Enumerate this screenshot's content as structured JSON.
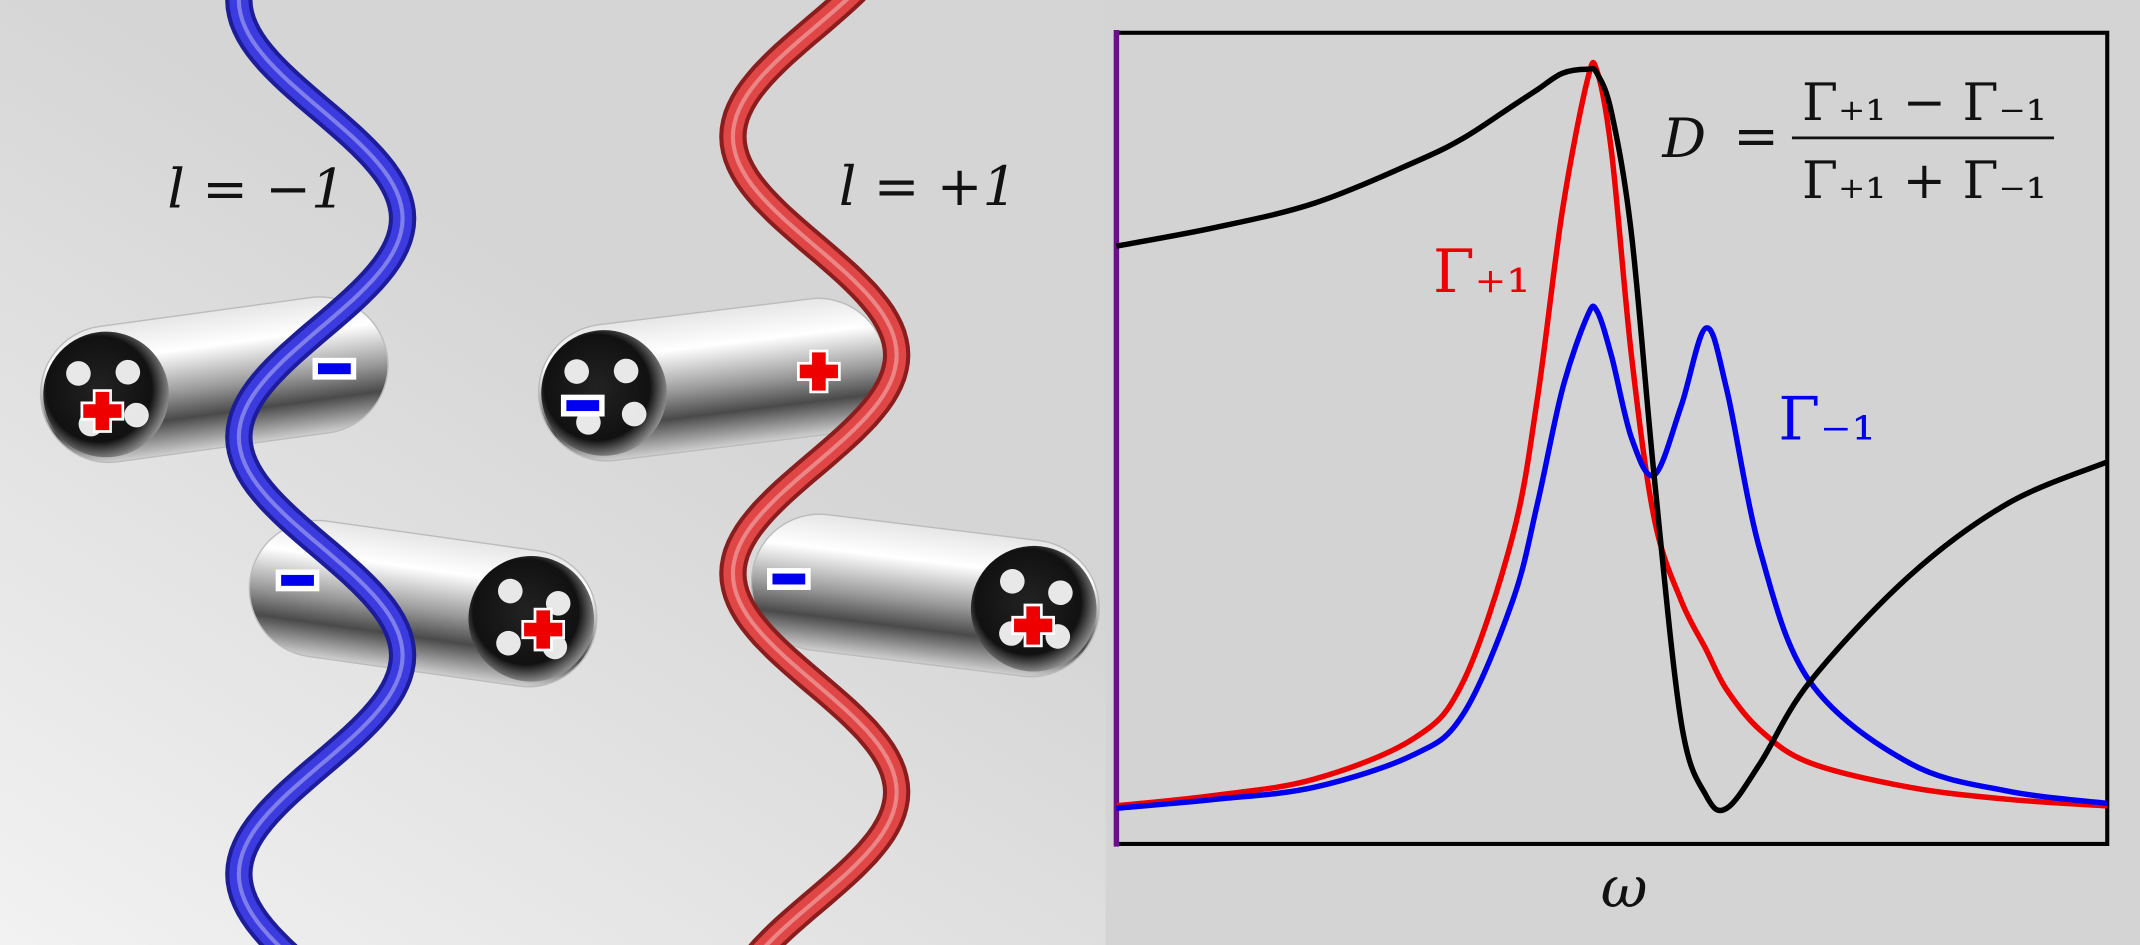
{
  "illustration": {
    "labels": [
      "l = −1",
      "l = +1"
    ]
  },
  "formula": {
    "equals": "=",
    "numerator": "Γ₊₁ − Γ₋₁",
    "denominator": "Γ₊₁ + Γ₋₁"
  },
  "chart_data": {
    "type": "line",
    "xlabel": "ω",
    "xlim": [
      0,
      10
    ],
    "ylim": [
      0,
      1
    ],
    "x": [
      0,
      1,
      2,
      3,
      3.5,
      4,
      4.25,
      4.5,
      4.75,
      4.85,
      5,
      5.2,
      5.43,
      5.7,
      5.95,
      6.16,
      6.5,
      7,
      8,
      9,
      10
    ],
    "series": [
      {
        "name": "Γ₊₁",
        "color": "#ee0000",
        "values": [
          0.047,
          0.06,
          0.08,
          0.13,
          0.2,
          0.38,
          0.55,
          0.78,
          0.94,
          0.953,
          0.85,
          0.6,
          0.4,
          0.3,
          0.24,
          0.19,
          0.14,
          0.1,
          0.07,
          0.055,
          0.047
        ]
      },
      {
        "name": "Γ₋₁",
        "color": "#0000ee",
        "values": [
          0.044,
          0.055,
          0.07,
          0.11,
          0.16,
          0.3,
          0.42,
          0.56,
          0.65,
          0.657,
          0.6,
          0.5,
          0.455,
          0.54,
          0.636,
          0.56,
          0.36,
          0.2,
          0.1,
          0.065,
          0.05
        ]
      },
      {
        "name": "D",
        "color": "#000000",
        "values": [
          0.737,
          0.76,
          0.79,
          0.84,
          0.87,
          0.91,
          0.93,
          0.95,
          0.955,
          0.95,
          0.9,
          0.75,
          0.45,
          0.15,
          0.06,
          0.044,
          0.1,
          0.2,
          0.33,
          0.42,
          0.471
        ]
      }
    ]
  }
}
